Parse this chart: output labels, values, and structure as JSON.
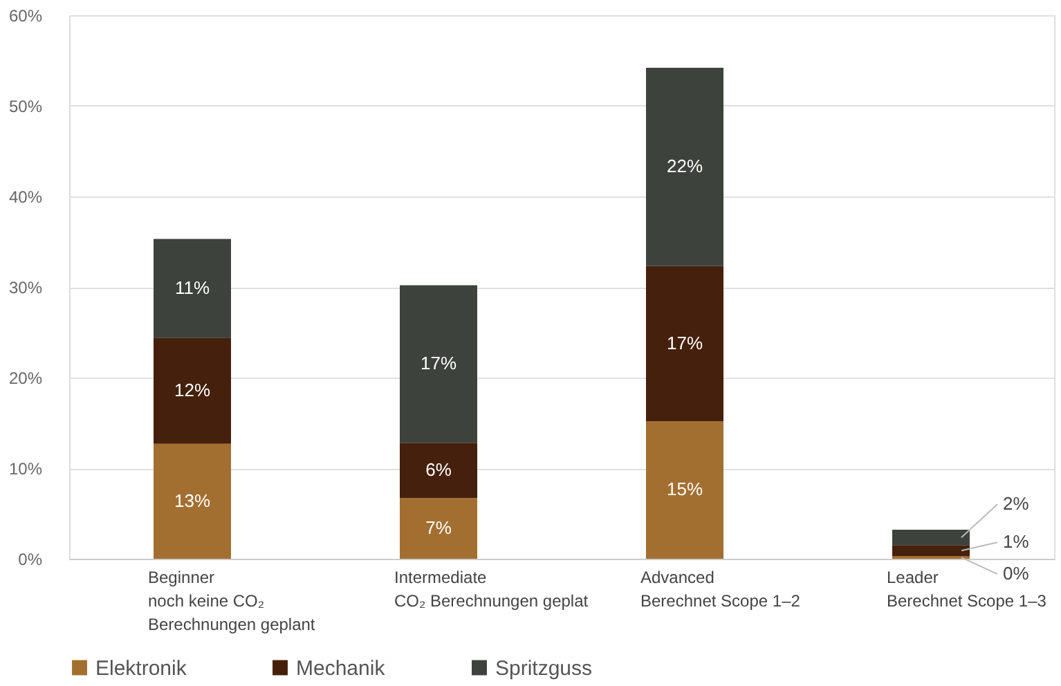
{
  "chart_data": {
    "type": "bar",
    "stacked": true,
    "categories": [
      "Beginner\nnoch keine CO₂\nBerechnungen geplant",
      "Intermediate\n\nCO₂ Berechnungen geplat",
      "Advanced\n\nBerechnet Scope 1–2",
      "Leader\n\nBerechnet Scope 1–3"
    ],
    "series": [
      {
        "name": "Elektronik",
        "color": "#a36f30",
        "values": [
          12.7,
          6.7,
          15.2,
          0.3
        ],
        "value_labels": [
          "13%",
          "7%",
          "15%",
          "0%"
        ]
      },
      {
        "name": "Mechanik",
        "color": "#45200c",
        "values": [
          11.7,
          6.1,
          17.1,
          1.2
        ],
        "value_labels": [
          "12%",
          "6%",
          "17%",
          "1%"
        ]
      },
      {
        "name": "Spritzguss",
        "color": "#3d423d",
        "values": [
          10.9,
          17.4,
          21.9,
          1.7
        ],
        "value_labels": [
          "11%",
          "17%",
          "22%",
          "2%"
        ]
      }
    ],
    "ylim": [
      0,
      60
    ],
    "yticks": [
      {
        "value": 0,
        "label": "0%"
      },
      {
        "value": 10,
        "label": "10%"
      },
      {
        "value": 20,
        "label": "20%"
      },
      {
        "value": 30,
        "label": "30%"
      },
      {
        "value": 40,
        "label": "40%"
      },
      {
        "value": 50,
        "label": "50%"
      },
      {
        "value": 60,
        "label": "60%"
      }
    ],
    "grid": "y",
    "legend": "bottom"
  }
}
